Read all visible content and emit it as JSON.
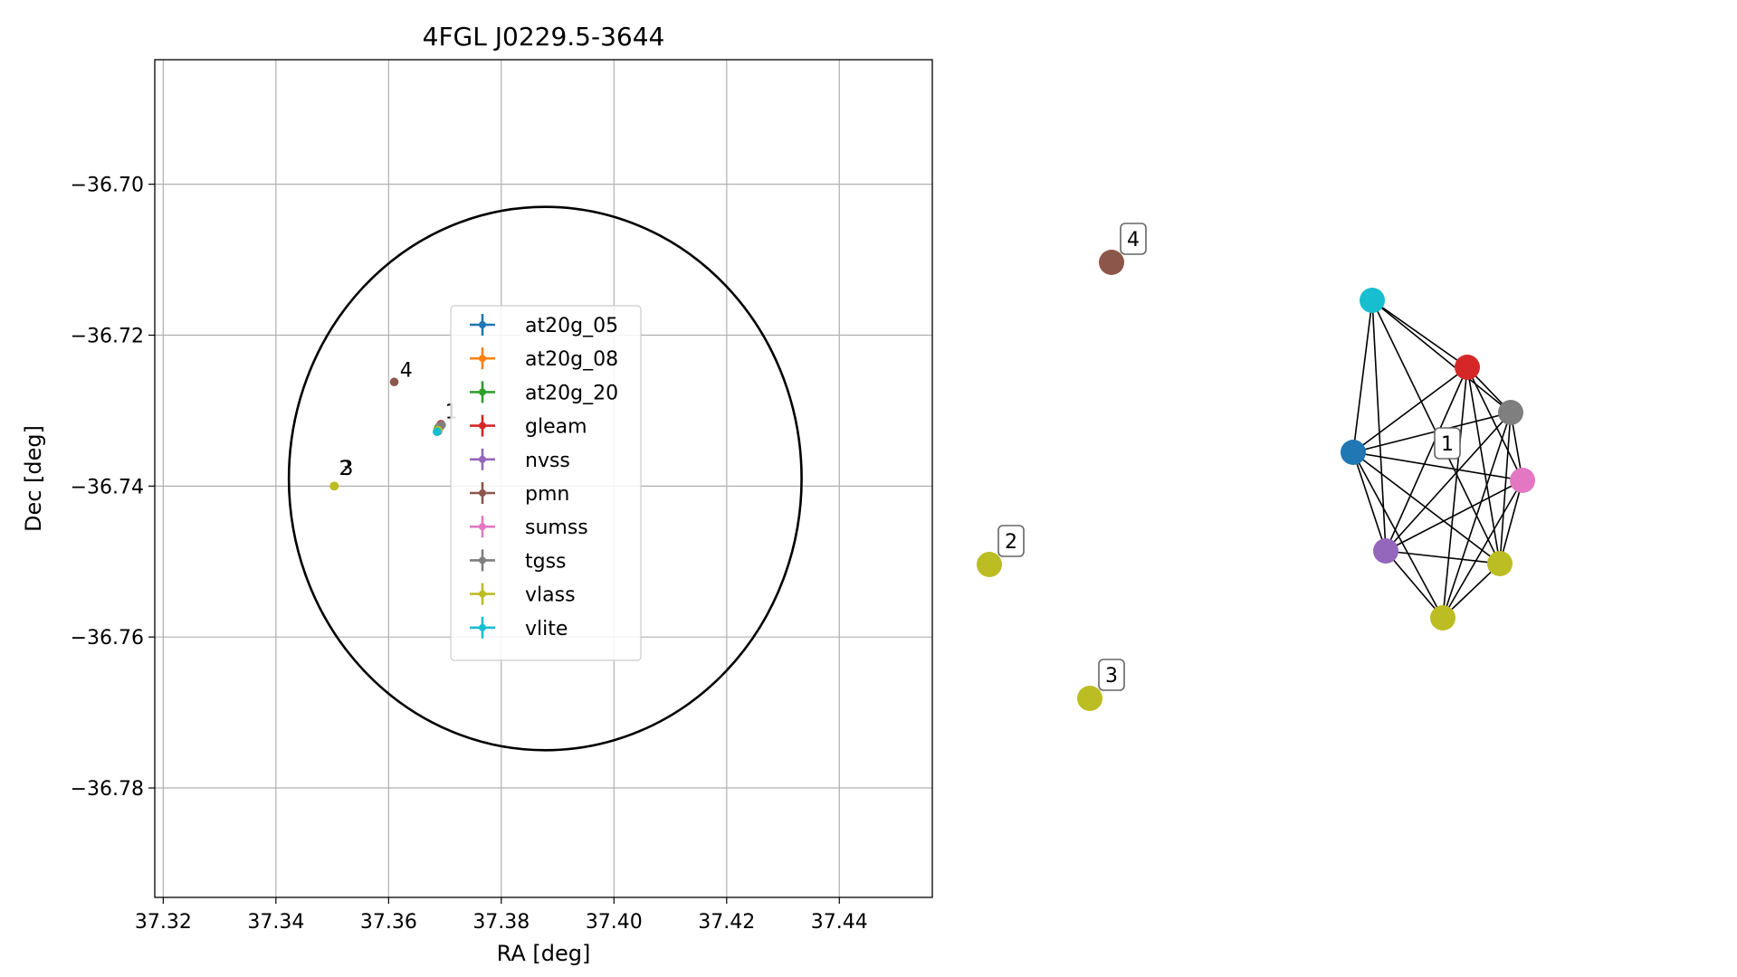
{
  "chart_data": [
    {
      "type": "scatter",
      "title": "4FGL J0229.5-3644",
      "xlabel": "RA [deg]",
      "ylabel": "Dec [deg]",
      "xlim": [
        37.3185,
        37.4565
      ],
      "ylim": [
        -36.7945,
        -36.6835
      ],
      "xticks": [
        37.32,
        37.34,
        37.36,
        37.38,
        37.4,
        37.42,
        37.44
      ],
      "xtick_labels": [
        "37.32",
        "37.34",
        "37.36",
        "37.38",
        "37.40",
        "37.42",
        "37.44"
      ],
      "yticks": [
        -36.7,
        -36.72,
        -36.74,
        -36.76,
        -36.78
      ],
      "ytick_labels": [
        "−36.70",
        "−36.72",
        "−36.74",
        "−36.76",
        "−36.78"
      ],
      "grid": true,
      "legend_position": "center",
      "ellipse": {
        "center_ra": 37.3878,
        "center_dec": -36.739,
        "semi_major_ra": 0.0455,
        "semi_minor_dec": 0.036,
        "color": "#000000"
      },
      "series": [
        {
          "name": "at20g_05",
          "color": "#1f77b4",
          "points": [
            {
              "ra": 37.369,
              "dec": -36.7323
            }
          ]
        },
        {
          "name": "at20g_08",
          "color": "#ff7f0e",
          "points": [
            {
              "ra": 37.3687,
              "dec": -36.7325
            }
          ]
        },
        {
          "name": "at20g_20",
          "color": "#2ca02c",
          "points": [
            {
              "ra": 37.3689,
              "dec": -36.7322
            }
          ]
        },
        {
          "name": "gleam",
          "color": "#d62728",
          "points": [
            {
              "ra": 37.3693,
              "dec": -36.7318
            }
          ]
        },
        {
          "name": "nvss",
          "color": "#9467bd",
          "points": [
            {
              "ra": 37.3688,
              "dec": -36.7327
            }
          ]
        },
        {
          "name": "pmn",
          "color": "#8c564b",
          "points": [
            {
              "ra": 37.361,
              "dec": -36.7262
            }
          ]
        },
        {
          "name": "sumss",
          "color": "#e377c2",
          "points": [
            {
              "ra": 37.3692,
              "dec": -36.7321
            }
          ]
        },
        {
          "name": "tgss",
          "color": "#7f7f7f",
          "points": [
            {
              "ra": 37.3694,
              "dec": -36.7319
            }
          ]
        },
        {
          "name": "vlass",
          "color": "#bcbd22",
          "points": [
            {
              "ra": 37.3503,
              "dec": -36.74
            },
            {
              "ra": 37.3504,
              "dec": -36.74
            },
            {
              "ra": 37.3688,
              "dec": -36.7326
            }
          ]
        },
        {
          "name": "vlite",
          "color": "#17becf",
          "points": [
            {
              "ra": 37.3686,
              "dec": -36.7328
            }
          ]
        }
      ],
      "annotations": [
        {
          "text": "4",
          "ra": 37.362,
          "dec": -36.7255
        },
        {
          "text": "1",
          "ra": 37.37,
          "dec": -36.731
        },
        {
          "text": "3",
          "ra": 37.3515,
          "dec": -36.7385
        },
        {
          "text": "2",
          "ra": 37.3512,
          "dec": -36.7385
        }
      ]
    },
    {
      "type": "network",
      "nodes": [
        {
          "id": "at20g",
          "color": "#1f77b4"
        },
        {
          "id": "vlite",
          "color": "#17becf"
        },
        {
          "id": "gleam",
          "color": "#d62728"
        },
        {
          "id": "tgss",
          "color": "#7f7f7f"
        },
        {
          "id": "sumss",
          "color": "#e377c2"
        },
        {
          "id": "nvss",
          "color": "#9467bd"
        },
        {
          "id": "vlass-a",
          "color": "#bcbd22"
        },
        {
          "id": "vlass-b",
          "color": "#bcbd22"
        },
        {
          "id": "pmn",
          "color": "#8c564b"
        },
        {
          "id": "vlass-2",
          "color": "#bcbd22"
        },
        {
          "id": "vlass-3",
          "color": "#bcbd22"
        }
      ],
      "edges": [
        [
          "at20g",
          "vlite"
        ],
        [
          "at20g",
          "gleam"
        ],
        [
          "at20g",
          "tgss"
        ],
        [
          "at20g",
          "sumss"
        ],
        [
          "at20g",
          "nvss"
        ],
        [
          "at20g",
          "vlass-a"
        ],
        [
          "at20g",
          "vlass-b"
        ],
        [
          "vlite",
          "gleam"
        ],
        [
          "vlite",
          "tgss"
        ],
        [
          "vlite",
          "nvss"
        ],
        [
          "vlite",
          "vlass-a"
        ],
        [
          "gleam",
          "tgss"
        ],
        [
          "gleam",
          "sumss"
        ],
        [
          "gleam",
          "nvss"
        ],
        [
          "gleam",
          "vlass-a"
        ],
        [
          "gleam",
          "vlass-b"
        ],
        [
          "tgss",
          "sumss"
        ],
        [
          "tgss",
          "nvss"
        ],
        [
          "tgss",
          "vlass-a"
        ],
        [
          "tgss",
          "vlass-b"
        ],
        [
          "sumss",
          "nvss"
        ],
        [
          "sumss",
          "vlass-a"
        ],
        [
          "sumss",
          "vlass-b"
        ],
        [
          "nvss",
          "vlass-a"
        ],
        [
          "nvss",
          "vlass-b"
        ],
        [
          "vlass-a",
          "vlass-b"
        ]
      ],
      "group_labels": [
        {
          "text": "1",
          "near": "at20g"
        },
        {
          "text": "4",
          "near": "pmn"
        },
        {
          "text": "2",
          "near": "vlass-2"
        },
        {
          "text": "3",
          "near": "vlass-3"
        }
      ]
    }
  ]
}
